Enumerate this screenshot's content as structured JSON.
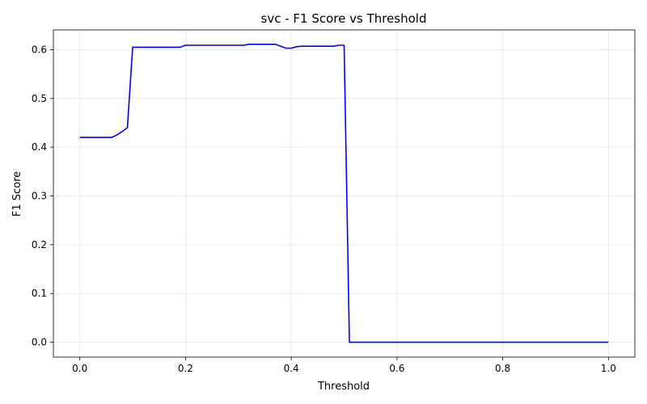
{
  "chart_data": {
    "type": "line",
    "title": "svc - F1 Score vs Threshold",
    "xlabel": "Threshold",
    "ylabel": "F1 Score",
    "xlim": [
      -0.05,
      1.05
    ],
    "ylim": [
      -0.0305,
      0.6405
    ],
    "xticks": [
      0.0,
      0.2,
      0.4,
      0.6,
      0.8,
      1.0
    ],
    "xtick_labels": [
      "0.0",
      "0.2",
      "0.4",
      "0.6",
      "0.8",
      "1.0"
    ],
    "yticks": [
      0.0,
      0.1,
      0.2,
      0.3,
      0.4,
      0.5,
      0.6
    ],
    "ytick_labels": [
      "0.0",
      "0.1",
      "0.2",
      "0.3",
      "0.4",
      "0.5",
      "0.6"
    ],
    "grid": true,
    "legend": false,
    "series": [
      {
        "color": "#0000ff",
        "x": [
          0.0,
          0.01,
          0.02,
          0.03,
          0.04,
          0.05,
          0.06,
          0.07,
          0.08,
          0.09,
          0.1,
          0.11,
          0.12,
          0.13,
          0.14,
          0.15,
          0.16,
          0.17,
          0.18,
          0.19,
          0.2,
          0.21,
          0.22,
          0.23,
          0.24,
          0.25,
          0.26,
          0.27,
          0.28,
          0.29,
          0.3,
          0.31,
          0.32,
          0.33,
          0.34,
          0.35,
          0.36,
          0.37,
          0.38,
          0.39,
          0.4,
          0.41,
          0.42,
          0.43,
          0.44,
          0.45,
          0.46,
          0.47,
          0.48,
          0.49,
          0.5,
          0.51,
          0.52,
          0.53,
          0.54,
          0.55,
          0.56,
          0.57,
          0.58,
          0.59,
          0.6,
          0.61,
          0.62,
          0.63,
          0.64,
          0.65,
          0.66,
          0.67,
          0.68,
          0.69,
          0.7,
          0.71,
          0.72,
          0.73,
          0.74,
          0.75,
          0.76,
          0.77,
          0.78,
          0.79,
          0.8,
          0.81,
          0.82,
          0.83,
          0.84,
          0.85,
          0.86,
          0.87,
          0.88,
          0.89,
          0.9,
          0.91,
          0.92,
          0.93,
          0.94,
          0.95,
          0.96,
          0.97,
          0.98,
          0.99,
          1.0
        ],
        "y": [
          0.42,
          0.42,
          0.42,
          0.42,
          0.42,
          0.42,
          0.42,
          0.425,
          0.432,
          0.44,
          0.605,
          0.605,
          0.605,
          0.605,
          0.605,
          0.605,
          0.605,
          0.605,
          0.605,
          0.605,
          0.609,
          0.609,
          0.609,
          0.609,
          0.609,
          0.609,
          0.609,
          0.609,
          0.609,
          0.609,
          0.609,
          0.609,
          0.611,
          0.611,
          0.611,
          0.611,
          0.611,
          0.611,
          0.607,
          0.603,
          0.603,
          0.606,
          0.607,
          0.607,
          0.607,
          0.607,
          0.607,
          0.607,
          0.607,
          0.609,
          0.609,
          0.0,
          0.0,
          0.0,
          0.0,
          0.0,
          0.0,
          0.0,
          0.0,
          0.0,
          0.0,
          0.0,
          0.0,
          0.0,
          0.0,
          0.0,
          0.0,
          0.0,
          0.0,
          0.0,
          0.0,
          0.0,
          0.0,
          0.0,
          0.0,
          0.0,
          0.0,
          0.0,
          0.0,
          0.0,
          0.0,
          0.0,
          0.0,
          0.0,
          0.0,
          0.0,
          0.0,
          0.0,
          0.0,
          0.0,
          0.0,
          0.0,
          0.0,
          0.0,
          0.0,
          0.0,
          0.0,
          0.0,
          0.0,
          0.0,
          0.0
        ]
      }
    ]
  }
}
